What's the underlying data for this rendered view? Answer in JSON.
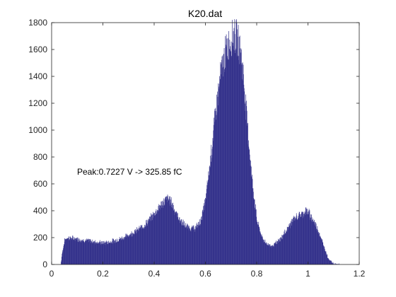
{
  "chart_data": {
    "type": "bar",
    "title": "K20.dat",
    "xlabel": "",
    "ylabel": "",
    "xlim": [
      0,
      1.2
    ],
    "ylim": [
      0,
      1800
    ],
    "x_ticks": [
      "0",
      "0.2",
      "0.4",
      "0.6",
      "0.8",
      "1",
      "1.2"
    ],
    "y_ticks": [
      "0",
      "200",
      "400",
      "600",
      "800",
      "1000",
      "1200",
      "1400",
      "1600",
      "1800"
    ],
    "annotation": "Peak:0.7227 V -> 325.85 fC",
    "bar_color": "#35338C",
    "grid": false,
    "series": [
      {
        "x": [
          0.035,
          0.04,
          0.05,
          0.06,
          0.08,
          0.1,
          0.12,
          0.15,
          0.18,
          0.2,
          0.22,
          0.25,
          0.28,
          0.3,
          0.33,
          0.36,
          0.38,
          0.4,
          0.42,
          0.44,
          0.45,
          0.46,
          0.47,
          0.48,
          0.5,
          0.52,
          0.54,
          0.56,
          0.58,
          0.6,
          0.62,
          0.64,
          0.66,
          0.68,
          0.7,
          0.71,
          0.72,
          0.73,
          0.74,
          0.75,
          0.76,
          0.78,
          0.8,
          0.82,
          0.84,
          0.86,
          0.88,
          0.9,
          0.92,
          0.94,
          0.96,
          0.98,
          0.99,
          1.0,
          1.02,
          1.04,
          1.06,
          1.08,
          1.1,
          1.12
        ],
        "values": [
          0,
          80,
          180,
          200,
          195,
          190,
          180,
          175,
          165,
          160,
          165,
          180,
          200,
          220,
          250,
          290,
          330,
          380,
          430,
          470,
          490,
          480,
          450,
          400,
          330,
          290,
          270,
          270,
          320,
          480,
          800,
          1150,
          1430,
          1600,
          1680,
          1710,
          1690,
          1640,
          1540,
          1340,
          1100,
          650,
          330,
          200,
          150,
          140,
          165,
          210,
          270,
          330,
          360,
          380,
          400,
          390,
          330,
          250,
          140,
          40,
          5,
          0
        ]
      }
    ]
  }
}
